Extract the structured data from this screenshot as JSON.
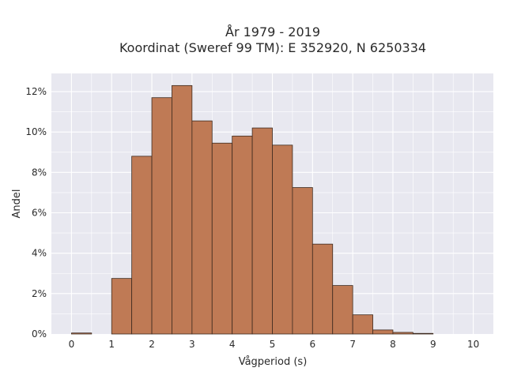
{
  "chart_data": {
    "type": "bar",
    "title_line1": "År 1979 - 2019",
    "title_line2": "Koordinat (Sweref 99 TM): E 352920, N 6250334",
    "xlabel": "Vågperiod (s)",
    "ylabel": "Andel",
    "bin_width": 0.5,
    "bin_starts": [
      0,
      0.5,
      1,
      1.5,
      2,
      2.5,
      3,
      3.5,
      4,
      4.5,
      5,
      5.5,
      6,
      6.5,
      7,
      7.5,
      8,
      8.5,
      9,
      9.5
    ],
    "values": [
      0.05,
      0.0,
      2.75,
      8.8,
      11.7,
      12.3,
      10.55,
      9.45,
      9.8,
      10.2,
      9.35,
      7.25,
      4.45,
      2.4,
      0.95,
      0.2,
      0.08,
      0.03,
      0.0,
      0.0
    ],
    "xlim": [
      -0.5,
      10.5
    ],
    "ylim": [
      0,
      12.9
    ],
    "xticks": [
      0,
      1,
      2,
      3,
      4,
      5,
      6,
      7,
      8,
      9,
      10
    ],
    "xtick_labels": [
      "0",
      "1",
      "2",
      "3",
      "4",
      "5",
      "6",
      "7",
      "8",
      "9",
      "10"
    ],
    "yticks": [
      0,
      2,
      4,
      6,
      8,
      10,
      12
    ],
    "ytick_labels": [
      "0%",
      "2%",
      "4%",
      "6%",
      "8%",
      "10%",
      "12%"
    ],
    "grid": true,
    "colors": {
      "bar_fill": "#bf7a55",
      "bar_edge": "#3d2a1f",
      "plot_bg": "#e8e8f0",
      "grid": "#ffffff"
    }
  }
}
